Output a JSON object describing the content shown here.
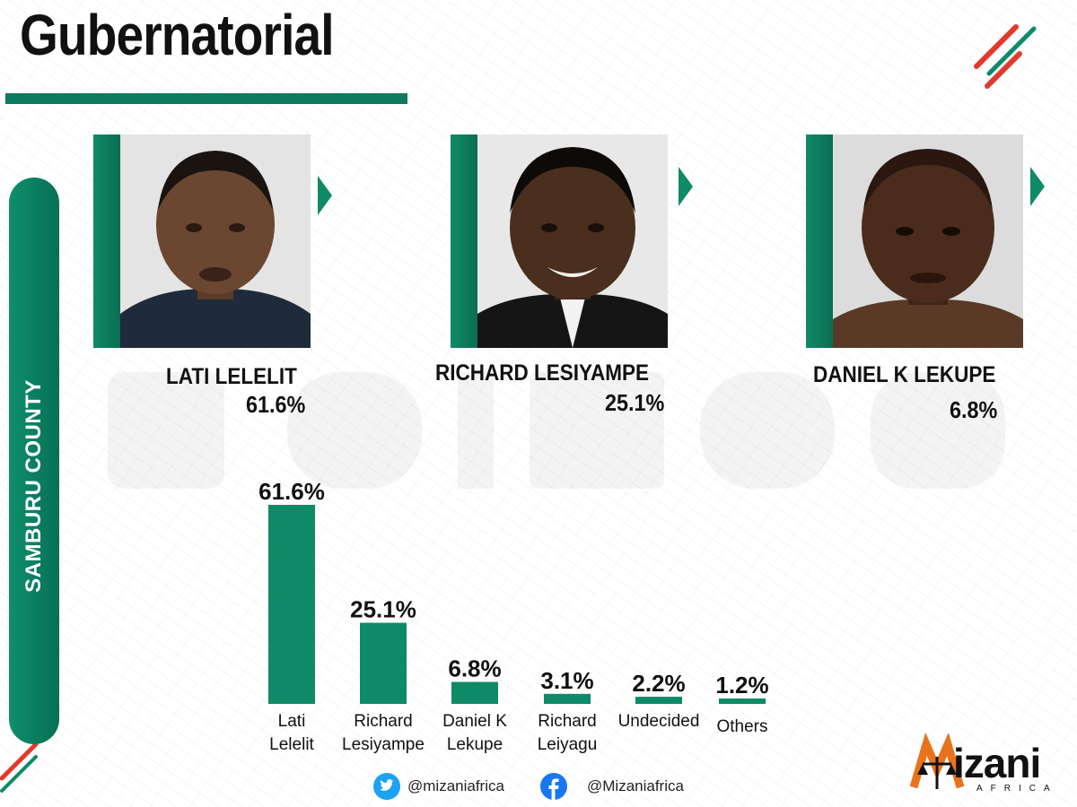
{
  "header": {
    "title": "Gubernatorial"
  },
  "county": {
    "label": "SAMBURU COUNTY"
  },
  "candidates": [
    {
      "name": "LATI LELELIT",
      "pct": "61.6%"
    },
    {
      "name": "RICHARD LESIYAMPE",
      "pct": "25.1%"
    },
    {
      "name": "DANIEL K LEKUPE",
      "pct": "6.8%"
    }
  ],
  "chart_data": {
    "type": "bar",
    "categories": [
      [
        "Lati",
        "Lelelit"
      ],
      [
        "Richard",
        "Lesiyampe"
      ],
      [
        "Daniel K",
        "Lekupe"
      ],
      [
        "Richard",
        "Leiyagu"
      ],
      [
        "Undecided"
      ],
      [
        "Others"
      ]
    ],
    "values": [
      61.6,
      25.1,
      6.8,
      3.1,
      2.2,
      1.2
    ],
    "value_labels": [
      "61.6%",
      "25.1%",
      "6.8%",
      "3.1%",
      "2.2%",
      "1.2%"
    ],
    "unit": "%",
    "grid": false,
    "legend": "none",
    "colors": {
      "bar": "#0e8a67"
    }
  },
  "footer": {
    "twitter_handle": "@mizaniafrica",
    "facebook_handle": "@Mizaniafrica"
  },
  "brand": {
    "name": "izani",
    "sub": "AFRICA"
  },
  "colors": {
    "accent_green": "#0e8a67",
    "accent_red": "#e03a2f",
    "brand_orange": "#e8731c",
    "twitter_blue": "#1da1f2",
    "facebook_blue": "#1877f2"
  },
  "icons": {
    "twitter": "twitter-icon",
    "facebook": "facebook-icon",
    "logo": "scales-of-justice-icon"
  }
}
